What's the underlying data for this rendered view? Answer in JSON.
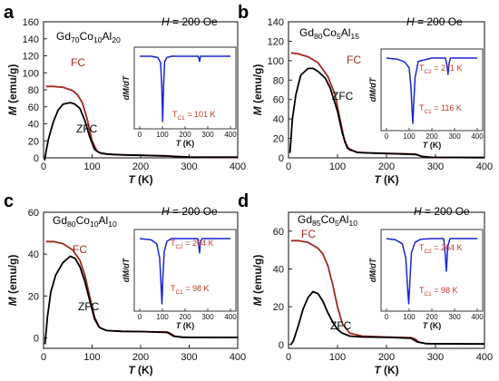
{
  "figure": {
    "colors": {
      "fc": "#a0281e",
      "zfc": "#000000",
      "inset": "#1a24d6",
      "axis": "#222222",
      "tc_label": "#c0392b"
    }
  },
  "chart_data": [
    {
      "type": "line",
      "panel": "a",
      "composition": "Gd70Co10Al20",
      "composition_parts": [
        [
          "Gd",
          ""
        ],
        [
          "70",
          "sub"
        ],
        [
          "Co",
          ""
        ],
        [
          "10",
          "sub"
        ],
        [
          "Al",
          ""
        ],
        [
          "20",
          "sub"
        ]
      ],
      "field_label": "H = 200 Oe",
      "xlabel": "T (K)",
      "ylabel": "M (emu/g)",
      "xlim": [
        0,
        400
      ],
      "ylim": [
        0,
        160
      ],
      "xticks": [
        0,
        100,
        200,
        300,
        400
      ],
      "yticks": [
        0,
        20,
        40,
        60,
        80,
        100,
        120,
        140,
        160
      ],
      "series": [
        {
          "name": "FC",
          "x": [
            5,
            20,
            40,
            60,
            70,
            80,
            90,
            100,
            110,
            120,
            140,
            160,
            200,
            250,
            270,
            300,
            350,
            400
          ],
          "y": [
            84,
            84,
            83,
            79,
            74,
            65,
            45,
            20,
            8,
            5,
            4,
            3.5,
            3,
            2.5,
            1.5,
            1,
            0.8,
            0.7
          ]
        },
        {
          "name": "ZFC",
          "x": [
            2,
            6,
            10,
            20,
            30,
            40,
            55,
            65,
            75,
            85,
            95,
            105,
            115,
            130,
            160,
            200,
            260,
            300,
            400
          ],
          "y": [
            -3,
            10,
            22,
            42,
            56,
            63,
            65,
            63,
            58,
            44,
            25,
            10,
            6,
            4.5,
            3.5,
            3,
            2,
            1,
            0.7
          ]
        }
      ],
      "inset": {
        "ylabel": "dM/dT",
        "xlabel": "T (K)",
        "xticks": [
          0,
          100,
          200,
          300,
          400
        ],
        "curve": {
          "x": [
            0,
            50,
            80,
            92,
            97,
            101,
            105,
            110,
            120,
            140,
            200,
            258,
            264,
            268,
            275,
            400
          ],
          "y": [
            0,
            0,
            -0.02,
            -0.1,
            -0.45,
            -1.0,
            -0.45,
            -0.08,
            -0.02,
            0,
            0,
            0,
            -0.08,
            0,
            0,
            0
          ]
        },
        "labels": [
          "TC1 = 101 K"
        ],
        "label_parts": [
          [
            [
              "T",
              ""
            ],
            [
              "C1",
              "sub"
            ],
            [
              " = 101 K",
              ""
            ]
          ]
        ]
      }
    },
    {
      "type": "line",
      "panel": "b",
      "composition": "Gd80Co5Al15",
      "composition_parts": [
        [
          "Gd",
          ""
        ],
        [
          "80",
          "sub"
        ],
        [
          "Co",
          ""
        ],
        [
          "5",
          "sub"
        ],
        [
          "Al",
          ""
        ],
        [
          "15",
          "sub"
        ]
      ],
      "field_label": "H = 200 Oe",
      "xlabel": "T (K)",
      "ylabel": "M (emu/g)",
      "xlim": [
        0,
        400
      ],
      "ylim": [
        0,
        140
      ],
      "xticks": [
        0,
        100,
        200,
        300,
        400
      ],
      "yticks": [
        0,
        20,
        40,
        60,
        80,
        100,
        120,
        140
      ],
      "series": [
        {
          "name": "FC",
          "x": [
            5,
            20,
            40,
            60,
            80,
            95,
            105,
            115,
            125,
            140,
            160,
            200,
            250,
            262,
            272,
            285,
            300,
            400
          ],
          "y": [
            108,
            107,
            104,
            98,
            84,
            65,
            40,
            16,
            8,
            6,
            5,
            4.5,
            4,
            3.5,
            1.5,
            0.8,
            0.5,
            0.3
          ]
        },
        {
          "name": "ZFC",
          "x": [
            3,
            8,
            15,
            25,
            40,
            50,
            60,
            75,
            85,
            100,
            110,
            120,
            140,
            200,
            260,
            272,
            290,
            400
          ],
          "y": [
            5,
            40,
            65,
            85,
            92,
            92,
            89,
            82,
            72,
            48,
            25,
            10,
            5.5,
            4.5,
            3.5,
            1.5,
            0.6,
            0.3
          ]
        }
      ],
      "inset": {
        "ylabel": "dM/dT",
        "xlabel": "T (K)",
        "xticks": [
          0,
          100,
          200,
          300,
          400
        ],
        "curve": {
          "x": [
            0,
            50,
            80,
            100,
            108,
            112,
            116,
            120,
            126,
            140,
            200,
            260,
            266,
            271,
            276,
            282,
            400
          ],
          "y": [
            0,
            -0.02,
            -0.06,
            -0.15,
            -0.45,
            -0.75,
            -1.0,
            -0.7,
            -0.3,
            -0.05,
            0,
            0,
            -0.1,
            -0.25,
            -0.08,
            0,
            0
          ]
        },
        "labels": [
          "TC2 = 271 K",
          "TC1 = 116 K"
        ],
        "label_parts": [
          [
            [
              "T",
              ""
            ],
            [
              "C2",
              "sub"
            ],
            [
              " = 271 K",
              ""
            ]
          ],
          [
            [
              "T",
              ""
            ],
            [
              "C1",
              "sub"
            ],
            [
              " = 116 K",
              ""
            ]
          ]
        ]
      }
    },
    {
      "type": "line",
      "panel": "c",
      "composition": "Gd80Co10Al10",
      "composition_parts": [
        [
          "Gd",
          ""
        ],
        [
          "80",
          "sub"
        ],
        [
          "Co",
          ""
        ],
        [
          "10",
          "sub"
        ],
        [
          "Al",
          ""
        ],
        [
          "10",
          "sub"
        ]
      ],
      "field_label": "H = 200 Oe",
      "xlabel": "T (K)",
      "ylabel": "M (emu/g)",
      "xlim": [
        0,
        400
      ],
      "ylim": [
        -5,
        60
      ],
      "xticks": [
        0,
        100,
        200,
        300,
        400
      ],
      "yticks": [
        0,
        20,
        40,
        60
      ],
      "series": [
        {
          "name": "FC",
          "x": [
            5,
            20,
            40,
            60,
            75,
            85,
            95,
            105,
            115,
            130,
            160,
            200,
            255,
            262,
            270,
            285,
            300,
            400
          ],
          "y": [
            46,
            46,
            45,
            42,
            37,
            30,
            20,
            10,
            5,
            3.5,
            3.2,
            3,
            2.8,
            2,
            0.8,
            0.4,
            0.3,
            0.2
          ]
        },
        {
          "name": "ZFC",
          "x": [
            3,
            8,
            15,
            25,
            40,
            55,
            65,
            75,
            85,
            95,
            105,
            115,
            130,
            160,
            200,
            255,
            268,
            285,
            400
          ],
          "y": [
            -3,
            10,
            22,
            30,
            36,
            39,
            38,
            34,
            27,
            18,
            9,
            5,
            3.5,
            3.1,
            3,
            2.6,
            0.8,
            0.3,
            0.2
          ]
        }
      ],
      "inset": {
        "ylabel": "dM/dT",
        "xlabel": "T (K)",
        "xticks": [
          0,
          100,
          200,
          300,
          400
        ],
        "curve": {
          "x": [
            0,
            50,
            75,
            88,
            94,
            98,
            102,
            108,
            120,
            140,
            200,
            256,
            260,
            264,
            268,
            275,
            400
          ],
          "y": [
            0,
            -0.02,
            -0.08,
            -0.3,
            -0.7,
            -1.0,
            -0.6,
            -0.2,
            -0.04,
            0,
            0,
            0,
            -0.1,
            -0.22,
            -0.05,
            0,
            0
          ]
        },
        "labels": [
          "TC2 = 264 K",
          "TC1 = 98 K"
        ],
        "label_parts": [
          [
            [
              "T",
              ""
            ],
            [
              "C2",
              "sub"
            ],
            [
              " = 264 K",
              ""
            ]
          ],
          [
            [
              "T",
              ""
            ],
            [
              "C1",
              "sub"
            ],
            [
              " = 98 K",
              ""
            ]
          ]
        ]
      }
    },
    {
      "type": "line",
      "panel": "d",
      "composition": "Gd85Co5Al10",
      "composition_parts": [
        [
          "Gd",
          ""
        ],
        [
          "85",
          "sub"
        ],
        [
          "Co",
          ""
        ],
        [
          "5",
          "sub"
        ],
        [
          "Al",
          ""
        ],
        [
          "10",
          "sub"
        ]
      ],
      "field_label": "H = 200 Oe",
      "xlabel": "T (K)",
      "ylabel": "M (emu/g)",
      "xlim": [
        0,
        400
      ],
      "ylim": [
        -2,
        70
      ],
      "xticks": [
        0,
        100,
        200,
        300,
        400
      ],
      "yticks": [
        0,
        20,
        40,
        60
      ],
      "series": [
        {
          "name": "FC",
          "x": [
            5,
            20,
            40,
            60,
            70,
            80,
            90,
            100,
            110,
            125,
            150,
            200,
            250,
            258,
            266,
            280,
            300,
            400
          ],
          "y": [
            55,
            55,
            54,
            51,
            48,
            42,
            32,
            20,
            11,
            6,
            4.5,
            4,
            3.6,
            3,
            1.2,
            0.6,
            0.4,
            0.3
          ]
        },
        {
          "name": "ZFC",
          "x": [
            5,
            10,
            20,
            30,
            40,
            50,
            60,
            70,
            80,
            90,
            100,
            110,
            125,
            150,
            200,
            250,
            262,
            280,
            400
          ],
          "y": [
            0,
            2,
            10,
            19,
            25,
            28,
            27,
            23,
            17,
            12,
            8,
            6,
            4.5,
            4,
            3.8,
            3.4,
            1.5,
            0.5,
            0.3
          ]
        }
      ],
      "inset": {
        "ylabel": "dM/dT",
        "xlabel": "T (K)",
        "xticks": [
          0,
          100,
          200,
          300,
          400
        ],
        "curve": {
          "x": [
            0,
            40,
            70,
            85,
            92,
            98,
            103,
            110,
            125,
            150,
            200,
            252,
            258,
            264,
            270,
            280,
            400
          ],
          "y": [
            0,
            -0.02,
            -0.08,
            -0.3,
            -0.7,
            -1.0,
            -0.65,
            -0.22,
            -0.06,
            -0.01,
            0,
            0,
            -0.2,
            -0.5,
            -0.12,
            0,
            0
          ]
        },
        "labels": [
          "TC2 = 264 K",
          "TC1 = 98 K"
        ],
        "label_parts": [
          [
            [
              "T",
              ""
            ],
            [
              "C2",
              "sub"
            ],
            [
              " = 264 K",
              ""
            ]
          ],
          [
            [
              "T",
              ""
            ],
            [
              "C1",
              "sub"
            ],
            [
              " = 98 K",
              ""
            ]
          ]
        ]
      }
    }
  ]
}
